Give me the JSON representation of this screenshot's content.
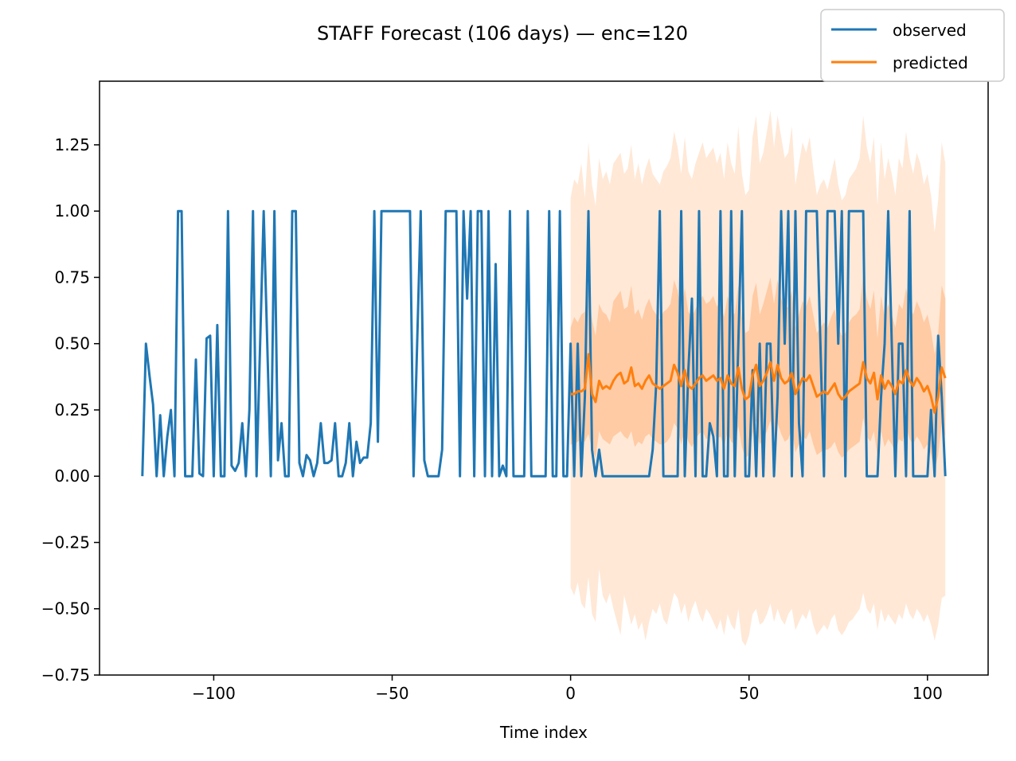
{
  "chart_data": {
    "type": "line",
    "title": "STAFF Forecast (106 days) — enc=120",
    "xlabel": "Time index",
    "ylabel": "",
    "xlim": [
      -132,
      117
    ],
    "ylim": [
      -0.75,
      1.49
    ],
    "xticks": [
      -100,
      -50,
      0,
      50,
      100
    ],
    "xtick_labels": [
      "−100",
      "−50",
      "0",
      "50",
      "100"
    ],
    "yticks": [
      -0.75,
      -0.5,
      -0.25,
      0.0,
      0.25,
      0.5,
      0.75,
      1.0,
      1.25
    ],
    "ytick_labels": [
      "−0.75",
      "−0.50",
      "−0.25",
      "0.00",
      "0.25",
      "0.50",
      "0.75",
      "1.00",
      "1.25"
    ],
    "legend": {
      "position": "top-right",
      "entries": [
        "observed",
        "predicted"
      ]
    },
    "colors": {
      "observed": "#1f77b4",
      "predicted": "#ff7f0e",
      "band_inner": "#ffcba4",
      "band_outer": "#ffe8d6"
    },
    "series": [
      {
        "name": "observed",
        "x": [
          -120,
          -119,
          -118,
          -117,
          -116,
          -115,
          -114,
          -113,
          -112,
          -111,
          -110,
          -109,
          -108,
          -107,
          -106,
          -105,
          -104,
          -103,
          -102,
          -101,
          -100,
          -99,
          -98,
          -97,
          -96,
          -95,
          -94,
          -93,
          -92,
          -91,
          -90,
          -89,
          -88,
          -87,
          -86,
          -85,
          -84,
          -83,
          -82,
          -81,
          -80,
          -79,
          -78,
          -77,
          -76,
          -75,
          -74,
          -73,
          -72,
          -71,
          -70,
          -69,
          -68,
          -67,
          -66,
          -65,
          -64,
          -63,
          -62,
          -61,
          -60,
          -59,
          -58,
          -57,
          -56,
          -55,
          -54,
          -53,
          -52,
          -51,
          -50,
          -49,
          -48,
          -47,
          -46,
          -45,
          -44,
          -43,
          -42,
          -41,
          -40,
          -39,
          -38,
          -37,
          -36,
          -35,
          -34,
          -33,
          -32,
          -31,
          -30,
          -29,
          -28,
          -27,
          -26,
          -25,
          -24,
          -23,
          -22,
          -21,
          -20,
          -19,
          -18,
          -17,
          -16,
          -15,
          -14,
          -13,
          -12,
          -11,
          -10,
          -9,
          -8,
          -7,
          -6,
          -5,
          -4,
          -3,
          -2,
          -1,
          0,
          1,
          2,
          3,
          4,
          5,
          6,
          7,
          8,
          9,
          10,
          11,
          12,
          13,
          14,
          15,
          16,
          17,
          18,
          19,
          20,
          21,
          22,
          23,
          24,
          25,
          26,
          27,
          28,
          29,
          30,
          31,
          32,
          33,
          34,
          35,
          36,
          37,
          38,
          39,
          40,
          41,
          42,
          43,
          44,
          45,
          46,
          47,
          48,
          49,
          50,
          51,
          52,
          53,
          54,
          55,
          56,
          57,
          58,
          59,
          60,
          61,
          62,
          63,
          64,
          65,
          66,
          67,
          68,
          69,
          70,
          71,
          72,
          73,
          74,
          75,
          76,
          77,
          78,
          79,
          80,
          81,
          82,
          83,
          84,
          85,
          86,
          87,
          88,
          89,
          90,
          91,
          92,
          93,
          94,
          95,
          96,
          97,
          98,
          99,
          100,
          101,
          102,
          103,
          104,
          105
        ],
        "y": [
          0,
          0.5,
          0.38,
          0.27,
          0,
          0.23,
          0,
          0.15,
          0.25,
          0,
          1,
          1,
          0,
          0,
          0,
          0.44,
          0.01,
          0,
          0.52,
          0.53,
          0,
          0.57,
          0,
          0,
          1,
          0.04,
          0.02,
          0.05,
          0.2,
          0,
          0.25,
          1,
          0,
          0.5,
          1,
          0.5,
          0,
          1,
          0.06,
          0.2,
          0,
          0,
          1,
          1,
          0.05,
          0,
          0.08,
          0.06,
          0,
          0.05,
          0.2,
          0.05,
          0.05,
          0.06,
          0.2,
          0,
          0,
          0.05,
          0.2,
          0,
          0.13,
          0.05,
          0.07,
          0.07,
          0.2,
          1,
          0.13,
          1,
          1,
          1,
          1,
          1,
          1,
          1,
          1,
          1,
          0,
          0.5,
          1,
          0.06,
          0,
          0,
          0,
          0,
          0.1,
          1,
          1,
          1,
          1,
          0,
          1,
          0.67,
          1,
          0,
          1,
          1,
          0,
          1,
          0,
          0.8,
          0,
          0.04,
          0,
          1,
          0,
          0,
          0,
          0,
          1,
          0,
          0,
          0,
          0,
          0,
          1,
          0,
          0,
          1,
          0,
          0,
          0.5,
          0,
          0.5,
          0,
          0.3,
          1,
          0.1,
          0,
          0.1,
          0,
          0,
          0,
          0,
          0,
          0,
          0,
          0,
          0,
          0,
          0,
          0,
          0,
          0,
          0.1,
          0.35,
          1,
          0,
          0,
          0,
          0,
          0,
          1,
          0,
          0.4,
          0.67,
          0,
          1,
          0,
          0,
          0.2,
          0.15,
          0,
          1,
          0,
          0,
          1,
          0,
          0.5,
          1,
          0,
          0,
          0.4,
          0,
          0.5,
          0,
          0.5,
          0.5,
          0,
          0.3,
          1,
          0.5,
          1,
          0,
          1,
          0.2,
          0,
          1,
          1,
          1,
          1,
          0.5,
          0,
          1,
          1,
          1,
          0.5,
          1,
          0,
          1,
          1,
          1,
          1,
          1,
          0,
          0,
          0,
          0,
          0.3,
          0.5,
          1,
          0.5,
          0,
          0.5,
          0.5,
          0,
          1,
          0,
          0,
          0,
          0,
          0,
          0.25,
          0,
          0.53,
          0.3,
          0
        ]
      },
      {
        "name": "predicted",
        "x": [
          0,
          1,
          2,
          3,
          4,
          5,
          6,
          7,
          8,
          9,
          10,
          11,
          12,
          13,
          14,
          15,
          16,
          17,
          18,
          19,
          20,
          21,
          22,
          23,
          24,
          25,
          26,
          27,
          28,
          29,
          30,
          31,
          32,
          33,
          34,
          35,
          36,
          37,
          38,
          39,
          40,
          41,
          42,
          43,
          44,
          45,
          46,
          47,
          48,
          49,
          50,
          51,
          52,
          53,
          54,
          55,
          56,
          57,
          58,
          59,
          60,
          61,
          62,
          63,
          64,
          65,
          66,
          67,
          68,
          69,
          70,
          71,
          72,
          73,
          74,
          75,
          76,
          77,
          78,
          79,
          80,
          81,
          82,
          83,
          84,
          85,
          86,
          87,
          88,
          89,
          90,
          91,
          92,
          93,
          94,
          95,
          96,
          97,
          98,
          99,
          100,
          101,
          102,
          103,
          104,
          105
        ],
        "y": [
          0.31,
          0.31,
          0.32,
          0.32,
          0.33,
          0.46,
          0.31,
          0.28,
          0.36,
          0.33,
          0.34,
          0.33,
          0.36,
          0.38,
          0.39,
          0.35,
          0.36,
          0.41,
          0.34,
          0.35,
          0.33,
          0.36,
          0.38,
          0.35,
          0.34,
          0.33,
          0.34,
          0.35,
          0.36,
          0.42,
          0.39,
          0.34,
          0.4,
          0.34,
          0.33,
          0.35,
          0.37,
          0.38,
          0.36,
          0.37,
          0.38,
          0.36,
          0.37,
          0.33,
          0.38,
          0.35,
          0.34,
          0.41,
          0.33,
          0.29,
          0.3,
          0.38,
          0.42,
          0.34,
          0.36,
          0.39,
          0.43,
          0.36,
          0.42,
          0.37,
          0.35,
          0.36,
          0.39,
          0.31,
          0.34,
          0.37,
          0.36,
          0.38,
          0.34,
          0.3,
          0.31,
          0.32,
          0.31,
          0.33,
          0.35,
          0.31,
          0.29,
          0.3,
          0.32,
          0.33,
          0.34,
          0.35,
          0.43,
          0.37,
          0.35,
          0.39,
          0.29,
          0.38,
          0.33,
          0.36,
          0.34,
          0.31,
          0.36,
          0.35,
          0.4,
          0.36,
          0.34,
          0.37,
          0.35,
          0.32,
          0.34,
          0.3,
          0.24,
          0.3,
          0.41,
          0.37
        ]
      }
    ],
    "bands": {
      "x_start": 0,
      "x_end": 105,
      "inner_lower": [
        0.12,
        0.12,
        0.13,
        0.14,
        0.13,
        0.16,
        0.1,
        0.07,
        0.17,
        0.14,
        0.13,
        0.12,
        0.15,
        0.16,
        0.17,
        0.15,
        0.14,
        0.17,
        0.11,
        0.13,
        0.12,
        0.15,
        0.16,
        0.14,
        0.13,
        0.12,
        0.12,
        0.13,
        0.15,
        0.2,
        0.18,
        0.12,
        0.18,
        0.13,
        0.11,
        0.14,
        0.16,
        0.17,
        0.14,
        0.15,
        0.17,
        0.14,
        0.15,
        0.11,
        0.17,
        0.13,
        0.12,
        0.19,
        0.11,
        0.07,
        0.08,
        0.16,
        0.21,
        0.12,
        0.14,
        0.17,
        0.21,
        0.14,
        0.2,
        0.16,
        0.13,
        0.14,
        0.18,
        0.09,
        0.12,
        0.15,
        0.14,
        0.17,
        0.12,
        0.08,
        0.09,
        0.1,
        0.1,
        0.11,
        0.13,
        0.09,
        0.07,
        0.08,
        0.1,
        0.11,
        0.12,
        0.13,
        0.22,
        0.15,
        0.13,
        0.17,
        0.07,
        0.17,
        0.11,
        0.14,
        0.12,
        0.09,
        0.14,
        0.13,
        0.19,
        0.14,
        0.12,
        0.15,
        0.13,
        0.1,
        0.12,
        0.08,
        0.02,
        0.08,
        0.2,
        0.15
      ],
      "inner_upper": [
        0.56,
        0.6,
        0.58,
        0.61,
        0.62,
        0.72,
        0.59,
        0.53,
        0.65,
        0.62,
        0.61,
        0.58,
        0.66,
        0.68,
        0.7,
        0.63,
        0.64,
        0.72,
        0.61,
        0.63,
        0.59,
        0.64,
        0.67,
        0.63,
        0.61,
        0.59,
        0.62,
        0.63,
        0.65,
        0.74,
        0.7,
        0.61,
        0.71,
        0.62,
        0.6,
        0.63,
        0.66,
        0.68,
        0.65,
        0.66,
        0.68,
        0.64,
        0.66,
        0.6,
        0.68,
        0.63,
        0.61,
        0.72,
        0.6,
        0.54,
        0.55,
        0.68,
        0.73,
        0.61,
        0.65,
        0.7,
        0.75,
        0.65,
        0.74,
        0.67,
        0.63,
        0.64,
        0.7,
        0.56,
        0.61,
        0.66,
        0.64,
        0.68,
        0.61,
        0.54,
        0.56,
        0.58,
        0.56,
        0.6,
        0.63,
        0.56,
        0.53,
        0.54,
        0.58,
        0.6,
        0.61,
        0.63,
        0.76,
        0.67,
        0.63,
        0.7,
        0.52,
        0.68,
        0.6,
        0.65,
        0.61,
        0.56,
        0.65,
        0.63,
        0.71,
        0.64,
        0.61,
        0.66,
        0.63,
        0.58,
        0.61,
        0.55,
        0.46,
        0.54,
        0.72,
        0.67
      ],
      "outer_lower": [
        -0.42,
        -0.45,
        -0.4,
        -0.48,
        -0.5,
        -0.38,
        -0.52,
        -0.55,
        -0.35,
        -0.45,
        -0.48,
        -0.44,
        -0.5,
        -0.55,
        -0.6,
        -0.45,
        -0.5,
        -0.56,
        -0.52,
        -0.58,
        -0.55,
        -0.62,
        -0.55,
        -0.5,
        -0.52,
        -0.48,
        -0.54,
        -0.56,
        -0.5,
        -0.44,
        -0.46,
        -0.52,
        -0.48,
        -0.55,
        -0.5,
        -0.47,
        -0.52,
        -0.55,
        -0.5,
        -0.52,
        -0.55,
        -0.58,
        -0.54,
        -0.6,
        -0.52,
        -0.56,
        -0.58,
        -0.5,
        -0.62,
        -0.64,
        -0.6,
        -0.52,
        -0.5,
        -0.56,
        -0.55,
        -0.52,
        -0.48,
        -0.55,
        -0.5,
        -0.54,
        -0.56,
        -0.52,
        -0.5,
        -0.58,
        -0.55,
        -0.52,
        -0.54,
        -0.5,
        -0.56,
        -0.6,
        -0.58,
        -0.56,
        -0.58,
        -0.54,
        -0.52,
        -0.58,
        -0.6,
        -0.58,
        -0.55,
        -0.54,
        -0.52,
        -0.5,
        -0.44,
        -0.5,
        -0.52,
        -0.48,
        -0.58,
        -0.5,
        -0.55,
        -0.52,
        -0.54,
        -0.56,
        -0.52,
        -0.54,
        -0.48,
        -0.52,
        -0.54,
        -0.5,
        -0.52,
        -0.55,
        -0.52,
        -0.56,
        -0.62,
        -0.56,
        -0.46,
        -0.45
      ],
      "outer_upper": [
        1.05,
        1.12,
        1.1,
        1.18,
        1.05,
        1.26,
        1.1,
        1.02,
        1.2,
        1.12,
        1.15,
        1.1,
        1.18,
        1.2,
        1.22,
        1.14,
        1.16,
        1.25,
        1.12,
        1.18,
        1.1,
        1.16,
        1.2,
        1.14,
        1.12,
        1.1,
        1.15,
        1.17,
        1.2,
        1.3,
        1.24,
        1.14,
        1.28,
        1.15,
        1.12,
        1.18,
        1.22,
        1.26,
        1.2,
        1.22,
        1.24,
        1.18,
        1.22,
        1.12,
        1.26,
        1.18,
        1.14,
        1.32,
        1.14,
        1.06,
        1.08,
        1.28,
        1.36,
        1.18,
        1.22,
        1.3,
        1.38,
        1.24,
        1.36,
        1.28,
        1.2,
        1.22,
        1.32,
        1.1,
        1.18,
        1.26,
        1.22,
        1.28,
        1.16,
        1.06,
        1.1,
        1.12,
        1.08,
        1.14,
        1.2,
        1.1,
        1.04,
        1.06,
        1.12,
        1.14,
        1.16,
        1.2,
        1.36,
        1.24,
        1.18,
        1.28,
        1.02,
        1.26,
        1.12,
        1.2,
        1.14,
        1.06,
        1.2,
        1.16,
        1.3,
        1.2,
        1.14,
        1.22,
        1.18,
        1.1,
        1.14,
        1.06,
        0.92,
        1.04,
        1.26,
        1.18
      ]
    }
  }
}
